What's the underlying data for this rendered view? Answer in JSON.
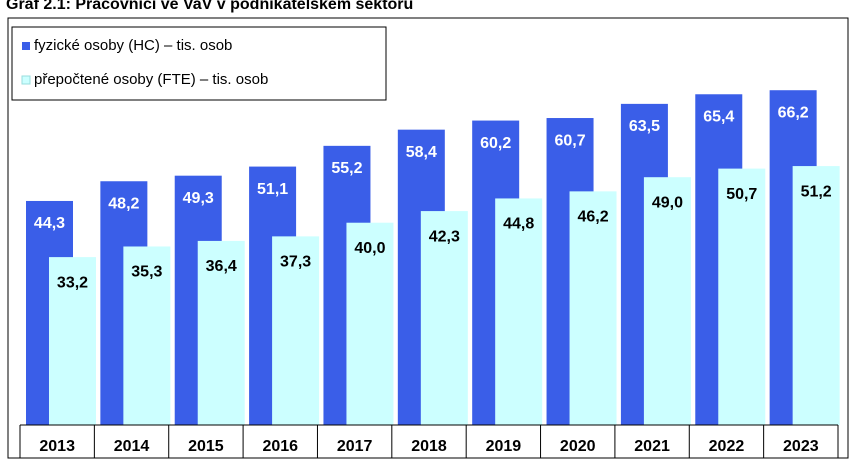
{
  "chart_data": {
    "type": "bar",
    "title": "Graf 2.1: Pracovníci ve VaV v podnikatelském sektoru",
    "categories": [
      "2013",
      "2014",
      "2015",
      "2016",
      "2017",
      "2018",
      "2019",
      "2020",
      "2021",
      "2022",
      "2023"
    ],
    "series": [
      {
        "name": "fyzické osoby (HC) – tis. osob",
        "color": "#3a5ee8",
        "values": [
          44.3,
          48.2,
          49.3,
          51.1,
          55.2,
          58.4,
          60.2,
          60.7,
          63.5,
          65.4,
          66.2
        ],
        "value_labels": [
          "44,3",
          "48,2",
          "49,3",
          "51,1",
          "55,2",
          "58,4",
          "60,2",
          "60,7",
          "63,5",
          "65,4",
          "66,2"
        ]
      },
      {
        "name": "přepočtené osoby (FTE) – tis. osob",
        "color": "#ccffff",
        "values": [
          33.2,
          35.3,
          36.4,
          37.3,
          40.0,
          42.3,
          44.8,
          46.2,
          49.0,
          50.7,
          51.2
        ],
        "value_labels": [
          "33,2",
          "35,3",
          "36,4",
          "37,3",
          "40,0",
          "42,3",
          "44,8",
          "46,2",
          "49,0",
          "50,7",
          "51,2"
        ]
      }
    ],
    "ylim": [
      0,
      70
    ],
    "legend": "top-left"
  }
}
